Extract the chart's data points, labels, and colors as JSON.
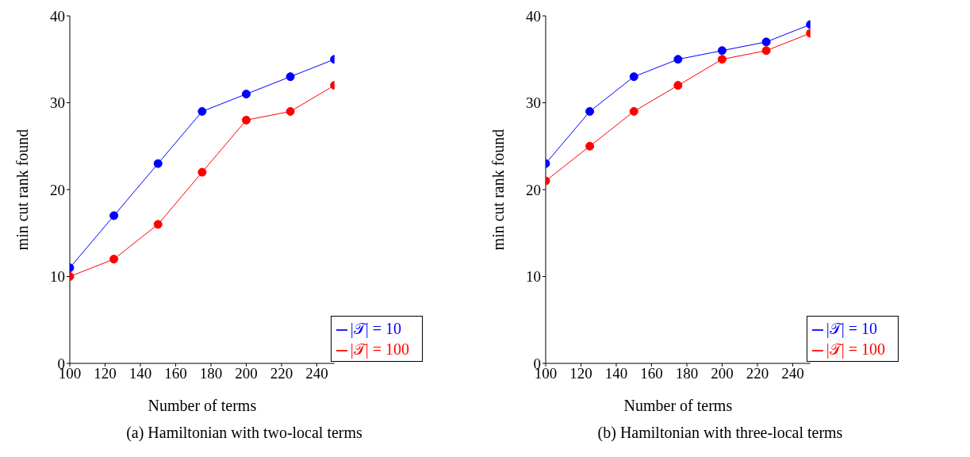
{
  "chart_data": [
    {
      "type": "line",
      "xlabel": "Number of terms",
      "ylabel": "min cut rank found",
      "annotations": [
        "(a) Hamiltonian with two-local terms"
      ],
      "x": [
        100,
        125,
        150,
        175,
        200,
        225,
        250
      ],
      "xlim": [
        100,
        250
      ],
      "xticks": [
        100,
        120,
        140,
        160,
        180,
        200,
        220,
        240
      ],
      "ylim": [
        0,
        40
      ],
      "yticks": [
        0,
        10,
        20,
        30,
        40
      ],
      "legend": "bottom right",
      "marker": "circle",
      "line_style": "solid",
      "grid": false,
      "series": [
        {
          "name": "|𝒯| = 10",
          "color": "#0000ff",
          "values": [
            11,
            17,
            23,
            29,
            31,
            33,
            35
          ]
        },
        {
          "name": "|𝒯| = 100",
          "color": "#ff0000",
          "values": [
            10,
            12,
            16,
            22,
            28,
            29,
            32
          ]
        }
      ]
    },
    {
      "type": "line",
      "xlabel": "Number of terms",
      "ylabel": "min cut rank found",
      "annotations": [
        "(b) Hamiltonian with three-local terms"
      ],
      "x": [
        100,
        125,
        150,
        175,
        200,
        225,
        250
      ],
      "xlim": [
        100,
        250
      ],
      "xticks": [
        100,
        120,
        140,
        160,
        180,
        200,
        220,
        240
      ],
      "ylim": [
        0,
        40
      ],
      "yticks": [
        0,
        10,
        20,
        30,
        40
      ],
      "legend": "bottom right",
      "marker": "circle",
      "line_style": "solid",
      "grid": false,
      "series": [
        {
          "name": "|𝒯| = 10",
          "color": "#0000ff",
          "values": [
            23,
            29,
            33,
            35,
            36,
            37,
            39
          ]
        },
        {
          "name": "|𝒯| = 100",
          "color": "#ff0000",
          "values": [
            21,
            25,
            29,
            32,
            35,
            36,
            38
          ]
        }
      ]
    }
  ]
}
